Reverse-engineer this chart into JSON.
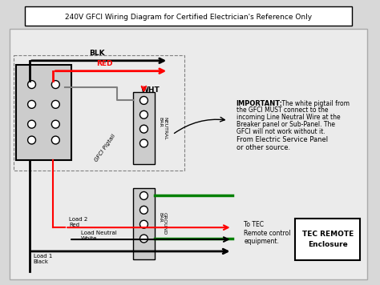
{
  "title": "240V GFCI Wiring Diagram for Certified Electrician's Reference Only",
  "bg_color": "#e8e8e8",
  "fig_bg": "#d0d0d0",
  "important_text": "IMPORTANT: The white pigtail from\nthe GFCI MUST connect to the\nincoming Line Neutral Wire at the\nBreaker panel or Sub-Panel. The\nGFCI will not work without it.",
  "from_text": "From Electric Service Panel\nor other source.",
  "tec_label": "To TEC\nRemote control\nequipment.",
  "tec_box_text": "TEC REMOTE\nEnclosure",
  "load2_label": "Load 2\nRed",
  "load_neutral_label": "Load Neutral\nWhite",
  "load1_label": "Load 1\nBlack",
  "gfci_label": "GFCI Pigtail",
  "neutral_bar_label": "NEUTRAL\nBAR",
  "ground_bar_label": "GROUND\nBAR",
  "blk_label": "BLK",
  "red_label": "RED",
  "wht_label": "WHT"
}
